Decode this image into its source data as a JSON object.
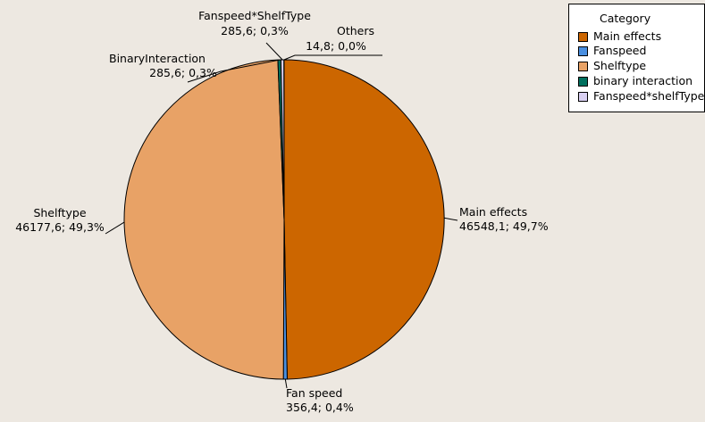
{
  "chart_data": {
    "type": "pie",
    "legend": {
      "title": "Category",
      "placement": "top-right",
      "items": [
        {
          "label": "Main effects",
          "color": "#cc6600"
        },
        {
          "label": "Fanspeed",
          "color": "#4a8fe0"
        },
        {
          "label": "Shelftype",
          "color": "#e8a266"
        },
        {
          "label": "binary interaction",
          "color": "#00705e"
        },
        {
          "label": "Fanspeed*shelfType",
          "color": "#d9d0f2"
        }
      ]
    },
    "slices": [
      {
        "name": "Main effects",
        "value": 46548.1,
        "percent": 49.7,
        "color": "#cc6600",
        "label_value": "46548,1; 49,7%"
      },
      {
        "name": "Fan speed",
        "value": 356.4,
        "percent": 0.4,
        "color": "#4a8fe0",
        "label_value": "356,4; 0,4%"
      },
      {
        "name": "Shelftype",
        "value": 46177.6,
        "percent": 49.3,
        "color": "#e8a266",
        "label_value": "46177,6; 49,3%"
      },
      {
        "name": "BinaryInteraction",
        "value": 285.6,
        "percent": 0.3,
        "color": "#00705e",
        "label_value": "285,6; 0,3%"
      },
      {
        "name": "Fanspeed*ShelfType",
        "value": 285.6,
        "percent": 0.3,
        "color": "#d9d0f2",
        "label_value": "285,6; 0,3%"
      },
      {
        "name": "Others",
        "value": 14.8,
        "percent": 0.0,
        "color": "#f0ece0",
        "label_value": "14,8; 0,0%"
      }
    ]
  }
}
